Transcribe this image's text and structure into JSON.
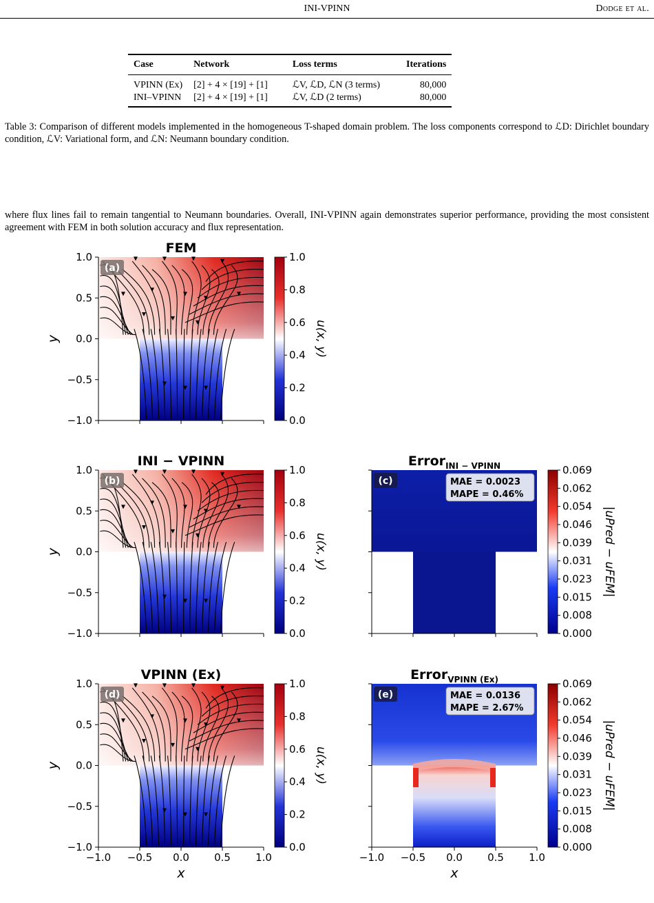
{
  "header": {
    "center": "INI-VPINN",
    "right": "Dodge et al."
  },
  "table": {
    "headers": [
      "Case",
      "Network",
      "Loss terms",
      "Iterations"
    ],
    "rows": [
      [
        "VPINN (Ex)",
        "[2] + 4 × [19] + [1]",
        "ℒV, ℒD, ℒN (3 terms)",
        "80,000"
      ],
      [
        "INI–VPINN",
        "[2] + 4 × [19] + [1]",
        "ℒV, ℒD (2 terms)",
        "80,000"
      ]
    ]
  },
  "caption": "Table 3: Comparison of different models implemented in the homogeneous T-shaped domain problem. The loss components correspond to ℒD: Dirichlet boundary condition, ℒV: Variational form, and ℒN: Neumann boundary condition.",
  "paragraph": "where flux lines fail to remain tangential to Neumann boundaries. Overall, INI-VPINN again demonstrates superior performance, providing the most consistent agreement with FEM in both solution accuracy and flux representation.",
  "figure": {
    "panels": [
      {
        "id": "a",
        "title": "FEM",
        "label": "(a)"
      },
      {
        "id": "b",
        "title": "INI − VPINN",
        "label": "(b)"
      },
      {
        "id": "c",
        "title": "Error",
        "title_sub": "INI − VPINN",
        "label": "(c)",
        "mae": "MAE = 0.0023",
        "mape": "MAPE = 0.46%"
      },
      {
        "id": "d",
        "title": "VPINN (Ex)",
        "label": "(d)"
      },
      {
        "id": "e",
        "title": "Error",
        "title_sub": "VPINN (Ex)",
        "label": "(e)",
        "mae": "MAE = 0.0136",
        "mape": "MAPE = 2.67%"
      }
    ],
    "axis_ticks": [
      "1.0",
      "0.5",
      "0.0",
      "−0.5",
      "−1.0"
    ],
    "x_ticks": [
      "−1.0",
      "−0.5",
      "0.0",
      "0.5",
      "1.0"
    ],
    "xlabel": "x",
    "ylabel": "y",
    "solution_colorbar": {
      "label": "u(x, y)",
      "ticks": [
        "1.0",
        "0.8",
        "0.6",
        "0.4",
        "0.2",
        "0.0"
      ],
      "range": [
        0,
        1
      ]
    },
    "error_colorbar": {
      "label": "|uPred − uFEM|",
      "ticks": [
        "0.069",
        "0.062",
        "0.054",
        "0.046",
        "0.039",
        "0.031",
        "0.023",
        "0.015",
        "0.008",
        "0.000"
      ],
      "range": [
        0,
        0.069
      ]
    },
    "colors": {
      "red": "#a3000f",
      "white": "#ffffff",
      "blue": "#00007d",
      "err_low": "#00008c",
      "err_high": "#8b0000"
    }
  }
}
